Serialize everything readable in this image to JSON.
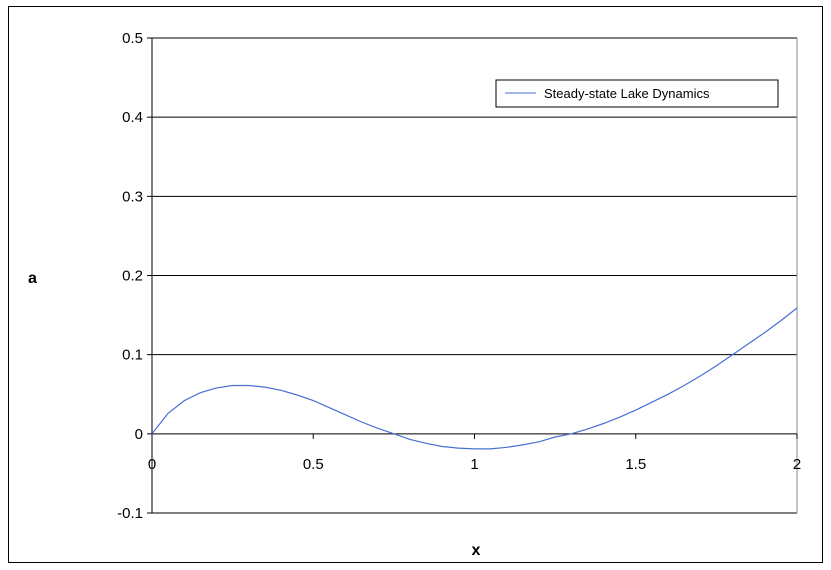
{
  "chart_data": {
    "type": "line",
    "title": "",
    "xlabel": "x",
    "ylabel": "a",
    "xlim": [
      0,
      2
    ],
    "ylim": [
      -0.1,
      0.5
    ],
    "x_ticks": [
      "0",
      "0.5",
      "1",
      "1.5",
      "2"
    ],
    "y_ticks": [
      "-0.1",
      "0",
      "0.1",
      "0.2",
      "0.3",
      "0.4",
      "0.5"
    ],
    "grid": "horizontal",
    "legend_position": "top-right",
    "series": [
      {
        "name": "Steady-state Lake Dynamics",
        "color": "#4a6fd4",
        "x": [
          0,
          0.05,
          0.1,
          0.15,
          0.2,
          0.25,
          0.3,
          0.35,
          0.4,
          0.45,
          0.5,
          0.55,
          0.6,
          0.65,
          0.7,
          0.75,
          0.8,
          0.85,
          0.9,
          0.95,
          1.0,
          1.05,
          1.1,
          1.15,
          1.2,
          1.25,
          1.3,
          1.35,
          1.4,
          1.45,
          1.5,
          1.55,
          1.6,
          1.65,
          1.7,
          1.75,
          1.8,
          1.85,
          1.9,
          1.95,
          2.0
        ],
        "y": [
          0,
          0.026,
          0.042,
          0.052,
          0.058,
          0.061,
          0.061,
          0.059,
          0.055,
          0.049,
          0.042,
          0.033,
          0.024,
          0.015,
          0.007,
          0.0,
          -0.007,
          -0.012,
          -0.016,
          -0.018,
          -0.019,
          -0.019,
          -0.017,
          -0.014,
          -0.01,
          -0.004,
          0.0,
          0.006,
          0.013,
          0.021,
          0.03,
          0.04,
          0.05,
          0.061,
          0.073,
          0.086,
          0.1,
          0.114,
          0.128,
          0.143,
          0.159
        ]
      }
    ]
  }
}
